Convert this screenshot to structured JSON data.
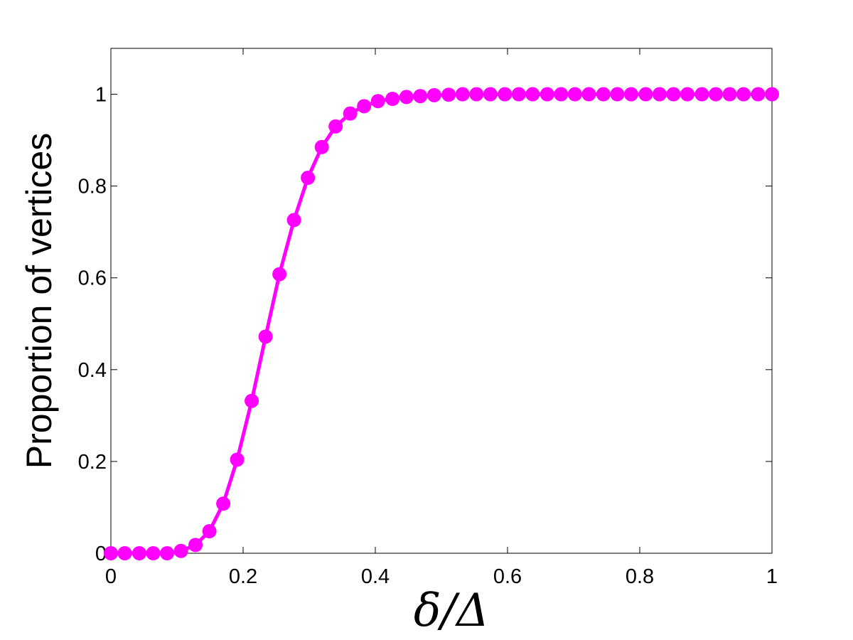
{
  "chart_data": {
    "type": "line",
    "x_label": "δ/Δ",
    "y_label": "Proportion of vertices",
    "x": [
      0,
      0.021,
      0.043,
      0.064,
      0.085,
      0.106,
      0.128,
      0.149,
      0.17,
      0.191,
      0.213,
      0.234,
      0.255,
      0.277,
      0.298,
      0.319,
      0.34,
      0.362,
      0.383,
      0.404,
      0.426,
      0.447,
      0.468,
      0.489,
      0.511,
      0.532,
      0.553,
      0.574,
      0.596,
      0.617,
      0.638,
      0.66,
      0.681,
      0.702,
      0.723,
      0.745,
      0.766,
      0.787,
      0.809,
      0.83,
      0.851,
      0.872,
      0.894,
      0.915,
      0.936,
      0.957,
      0.979,
      1
    ],
    "series": [
      {
        "color": "#ff00ff",
        "values": [
          0,
          0,
          0,
          0,
          0,
          0.005,
          0.018,
          0.048,
          0.108,
          0.204,
          0.332,
          0.472,
          0.608,
          0.726,
          0.818,
          0.885,
          0.93,
          0.958,
          0.974,
          0.985,
          0.99,
          0.994,
          0.996,
          0.998,
          0.999,
          1,
          1,
          1,
          1,
          1,
          1,
          1,
          1,
          1,
          1,
          1,
          1,
          1,
          1,
          1,
          1,
          1,
          1,
          1,
          1,
          1,
          1,
          1
        ]
      }
    ],
    "xlim": [
      0,
      1
    ],
    "xticks": [
      0,
      0.2,
      0.4,
      0.6,
      0.8,
      1
    ],
    "ylim": [
      0,
      1.1
    ],
    "yticks": [
      0,
      0.2,
      0.4,
      0.6,
      0.8,
      1
    ]
  }
}
